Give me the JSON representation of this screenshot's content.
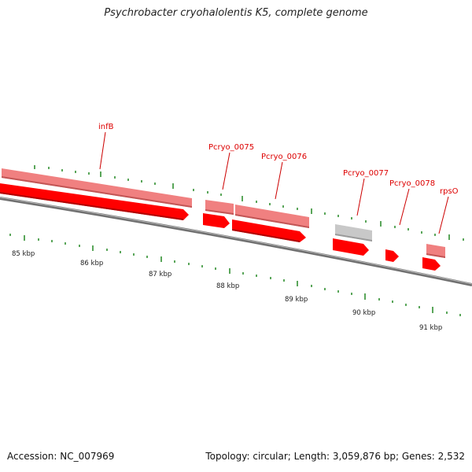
{
  "title": "Psychrobacter cryohalolentis K5, complete genome",
  "footer": {
    "accession": "Accession: NC_007969",
    "summary": "Topology: circular; Length: 3,059,876 bp; Genes: 2,532"
  },
  "axis": {
    "tick_labels": [
      "85 kbp",
      "86 kbp",
      "87 kbp",
      "88 kbp",
      "89 kbp",
      "90 kbp",
      "91 kbp"
    ]
  },
  "gene_labels": [
    "infB",
    "Pcryo_0075",
    "Pcryo_0076",
    "Pcryo_0077",
    "Pcryo_0078",
    "rpsO"
  ],
  "colors": {
    "cds_forward": "#ff0000",
    "cds_light": "#f08080",
    "pseudo_gray": "#c0c0c0",
    "backbone": "#808080",
    "tick_green": "#228822",
    "label_red": "#dd0000"
  }
}
